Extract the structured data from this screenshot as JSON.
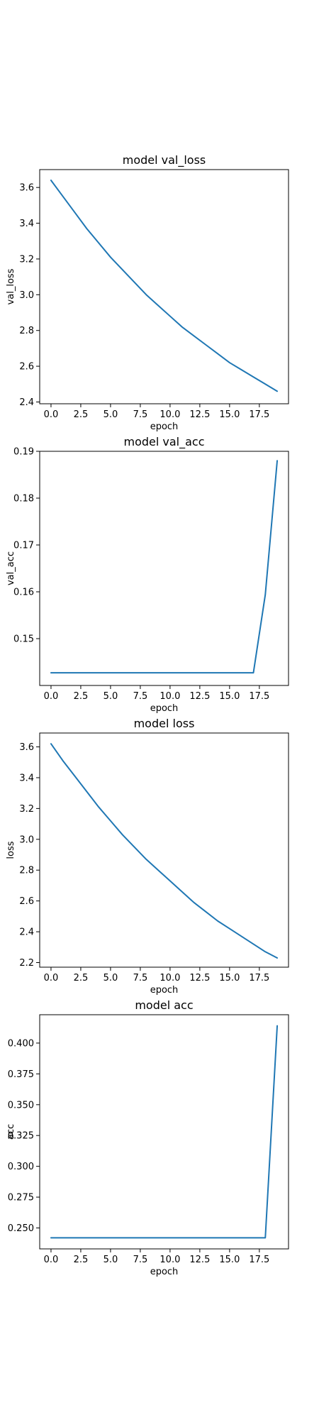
{
  "chart_data": [
    {
      "type": "line",
      "title": "model val_loss",
      "xlabel": "epoch",
      "ylabel": "val_loss",
      "xlim": [
        -0.95,
        19.95
      ],
      "ylim": [
        2.39,
        3.7
      ],
      "xticks": [
        0.0,
        2.5,
        5.0,
        7.5,
        10.0,
        12.5,
        15.0,
        17.5
      ],
      "xtick_labels": [
        "0.0",
        "2.5",
        "5.0",
        "7.5",
        "10.0",
        "12.5",
        "15.0",
        "17.5"
      ],
      "yticks": [
        2.4,
        2.6,
        2.8,
        3.0,
        3.2,
        3.4,
        3.6
      ],
      "ytick_labels": [
        "2.4",
        "2.6",
        "2.8",
        "3.0",
        "3.2",
        "3.4",
        "3.6"
      ],
      "grid": false,
      "color": "#1f77b4",
      "series": [
        {
          "x": [
            0,
            1,
            2,
            3,
            4,
            5,
            6,
            7,
            8,
            9,
            10,
            11,
            12,
            13,
            14,
            15,
            16,
            17,
            18,
            19
          ],
          "values": [
            3.64,
            3.55,
            3.46,
            3.37,
            3.29,
            3.21,
            3.14,
            3.07,
            3.0,
            2.94,
            2.88,
            2.82,
            2.77,
            2.72,
            2.67,
            2.62,
            2.58,
            2.54,
            2.5,
            2.46
          ]
        }
      ]
    },
    {
      "type": "line",
      "title": "model val_acc",
      "xlabel": "epoch",
      "ylabel": "val_acc",
      "xlim": [
        -0.95,
        19.95
      ],
      "ylim": [
        0.14,
        0.19
      ],
      "xticks": [
        0.0,
        2.5,
        5.0,
        7.5,
        10.0,
        12.5,
        15.0,
        17.5
      ],
      "xtick_labels": [
        "0.0",
        "2.5",
        "5.0",
        "7.5",
        "10.0",
        "12.5",
        "15.0",
        "17.5"
      ],
      "yticks": [
        0.15,
        0.16,
        0.17,
        0.18,
        0.19
      ],
      "ytick_labels": [
        "0.15",
        "0.16",
        "0.17",
        "0.18",
        "0.19"
      ],
      "grid": false,
      "color": "#1f77b4",
      "series": [
        {
          "x": [
            0,
            1,
            2,
            3,
            4,
            5,
            6,
            7,
            8,
            9,
            10,
            11,
            12,
            13,
            14,
            15,
            16,
            17,
            18,
            19
          ],
          "values": [
            0.1427,
            0.1427,
            0.1427,
            0.1427,
            0.1427,
            0.1427,
            0.1427,
            0.1427,
            0.1427,
            0.1427,
            0.1427,
            0.1427,
            0.1427,
            0.1427,
            0.1427,
            0.1427,
            0.1427,
            0.1427,
            0.1594,
            0.188
          ]
        }
      ]
    },
    {
      "type": "line",
      "title": "model loss",
      "xlabel": "epoch",
      "ylabel": "loss",
      "xlim": [
        -0.95,
        19.95
      ],
      "ylim": [
        2.17,
        3.69
      ],
      "xticks": [
        0.0,
        2.5,
        5.0,
        7.5,
        10.0,
        12.5,
        15.0,
        17.5
      ],
      "xtick_labels": [
        "0.0",
        "2.5",
        "5.0",
        "7.5",
        "10.0",
        "12.5",
        "15.0",
        "17.5"
      ],
      "yticks": [
        2.2,
        2.4,
        2.6,
        2.8,
        3.0,
        3.2,
        3.4,
        3.6
      ],
      "ytick_labels": [
        "2.2",
        "2.4",
        "2.6",
        "2.8",
        "3.0",
        "3.2",
        "3.4",
        "3.6"
      ],
      "grid": false,
      "color": "#1f77b4",
      "series": [
        {
          "x": [
            0,
            1,
            2,
            3,
            4,
            5,
            6,
            7,
            8,
            9,
            10,
            11,
            12,
            13,
            14,
            15,
            16,
            17,
            18,
            19
          ],
          "values": [
            3.62,
            3.51,
            3.41,
            3.31,
            3.21,
            3.12,
            3.03,
            2.95,
            2.87,
            2.8,
            2.73,
            2.66,
            2.59,
            2.53,
            2.47,
            2.42,
            2.37,
            2.32,
            2.27,
            2.23
          ]
        }
      ]
    },
    {
      "type": "line",
      "title": "model acc",
      "xlabel": "epoch",
      "ylabel": "acc",
      "xlim": [
        -0.95,
        19.95
      ],
      "ylim": [
        0.233,
        0.423
      ],
      "xticks": [
        0.0,
        2.5,
        5.0,
        7.5,
        10.0,
        12.5,
        15.0,
        17.5
      ],
      "xtick_labels": [
        "0.0",
        "2.5",
        "5.0",
        "7.5",
        "10.0",
        "12.5",
        "15.0",
        "17.5"
      ],
      "yticks": [
        0.25,
        0.275,
        0.3,
        0.325,
        0.35,
        0.375,
        0.4
      ],
      "ytick_labels": [
        "0.250",
        "0.275",
        "0.300",
        "0.325",
        "0.350",
        "0.375",
        "0.400"
      ],
      "grid": false,
      "color": "#1f77b4",
      "series": [
        {
          "x": [
            0,
            1,
            2,
            3,
            4,
            5,
            6,
            7,
            8,
            9,
            10,
            11,
            12,
            13,
            14,
            15,
            16,
            17,
            18,
            19
          ],
          "values": [
            0.242,
            0.242,
            0.242,
            0.242,
            0.242,
            0.242,
            0.242,
            0.242,
            0.242,
            0.242,
            0.242,
            0.242,
            0.242,
            0.242,
            0.242,
            0.242,
            0.242,
            0.242,
            0.242,
            0.414
          ]
        }
      ]
    }
  ]
}
